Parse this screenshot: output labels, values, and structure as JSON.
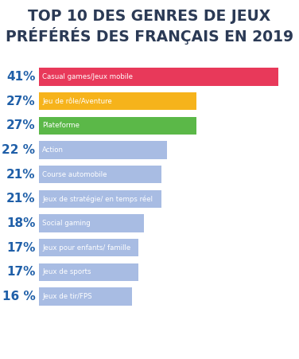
{
  "chart_data": {
    "type": "bar",
    "orientation": "horizontal",
    "title": "TOP 10 DES GENRES DE JEUX PRÉFÉRÉS DES FRANÇAIS EN 2019",
    "categories": [
      "Casual games/Jeux mobile",
      "Jeu de rôle/Aventure",
      "Plateforme",
      "Action",
      "Course automobile",
      "Jeux de stratégie/ en temps réel",
      "Social gaming",
      "Jeux pour enfants/ famille",
      "Jeux de sports",
      "Jeux de tir/FPS"
    ],
    "values": [
      41,
      27,
      27,
      22,
      21,
      21,
      18,
      17,
      17,
      16
    ],
    "value_labels": [
      "41%",
      "27%",
      "27%",
      "22 %",
      "21%",
      "21%",
      "18%",
      "17%",
      "17%",
      "16 %"
    ],
    "data_labels": true,
    "colors": [
      "#e8395a",
      "#f6b31b",
      "#5bb848",
      "#a8bce3",
      "#a8bce3",
      "#a8bce3",
      "#a8bce3",
      "#a8bce3",
      "#a8bce3",
      "#a8bce3"
    ],
    "xlim": [
      0,
      41
    ],
    "tick_labels": false,
    "grid": false
  }
}
